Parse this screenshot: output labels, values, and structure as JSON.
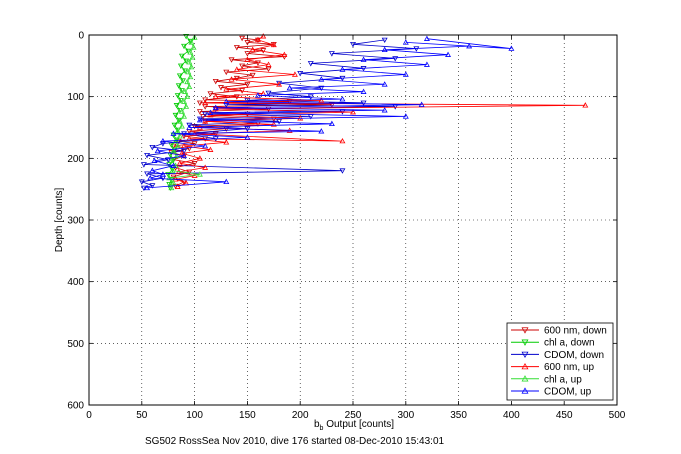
{
  "chart_data": {
    "type": "line",
    "title": "",
    "xlabel_main": "b",
    "xlabel_sub": "b",
    "xlabel_rest": " Output [counts]",
    "ylabel": "Depth [counts]",
    "caption": "SG502 RossSea Nov 2010, dive 176 started 08-Dec-2010 15:43:01",
    "xlim": [
      0,
      500
    ],
    "ylim": [
      0,
      600
    ],
    "y_reversed": true,
    "grid": true,
    "xticks": [
      "0",
      "50",
      "100",
      "150",
      "200",
      "250",
      "300",
      "350",
      "400",
      "450",
      "500"
    ],
    "yticks": [
      "0",
      "100",
      "200",
      "300",
      "400",
      "500",
      "600"
    ],
    "legend_position": "bottom-right",
    "series": [
      {
        "name": "600 nm, down",
        "color": "#cc0000",
        "marker": "triangle-down",
        "points": [
          [
            145,
            5
          ],
          [
            160,
            8
          ],
          [
            150,
            12
          ],
          [
            175,
            15
          ],
          [
            140,
            20
          ],
          [
            165,
            25
          ],
          [
            150,
            30
          ],
          [
            185,
            35
          ],
          [
            135,
            40
          ],
          [
            160,
            45
          ],
          [
            145,
            50
          ],
          [
            170,
            55
          ],
          [
            130,
            60
          ],
          [
            155,
            65
          ],
          [
            140,
            70
          ],
          [
            120,
            75
          ],
          [
            150,
            80
          ],
          [
            125,
            85
          ],
          [
            145,
            90
          ],
          [
            115,
            95
          ],
          [
            140,
            100
          ],
          [
            110,
            105
          ],
          [
            190,
            108
          ],
          [
            105,
            110
          ],
          [
            230,
            113
          ],
          [
            110,
            116
          ],
          [
            170,
            120
          ],
          [
            105,
            124
          ],
          [
            150,
            128
          ],
          [
            108,
            132
          ],
          [
            175,
            136
          ],
          [
            110,
            140
          ],
          [
            160,
            144
          ],
          [
            100,
            148
          ],
          [
            130,
            152
          ],
          [
            95,
            156
          ],
          [
            120,
            160
          ],
          [
            90,
            164
          ],
          [
            110,
            168
          ],
          [
            85,
            172
          ],
          [
            100,
            176
          ],
          [
            80,
            180
          ],
          [
            95,
            184
          ],
          [
            78,
            190
          ],
          [
            90,
            196
          ],
          [
            80,
            202
          ],
          [
            100,
            208
          ],
          [
            82,
            215
          ],
          [
            95,
            222
          ],
          [
            80,
            230
          ],
          [
            90,
            238
          ],
          [
            82,
            245
          ]
        ]
      },
      {
        "name": "chl a, down",
        "color": "#00cc00",
        "marker": "triangle-down",
        "points": [
          [
            92,
            2
          ],
          [
            96,
            10
          ],
          [
            90,
            18
          ],
          [
            94,
            26
          ],
          [
            88,
            34
          ],
          [
            92,
            42
          ],
          [
            87,
            50
          ],
          [
            91,
            58
          ],
          [
            86,
            66
          ],
          [
            89,
            74
          ],
          [
            85,
            82
          ],
          [
            88,
            90
          ],
          [
            84,
            98
          ],
          [
            87,
            106
          ],
          [
            83,
            114
          ],
          [
            86,
            122
          ],
          [
            82,
            130
          ],
          [
            85,
            138
          ],
          [
            81,
            146
          ],
          [
            84,
            154
          ],
          [
            80,
            162
          ],
          [
            83,
            170
          ],
          [
            78,
            178
          ],
          [
            81,
            186
          ],
          [
            77,
            194
          ],
          [
            80,
            202
          ],
          [
            76,
            210
          ],
          [
            79,
            218
          ],
          [
            75,
            226
          ],
          [
            78,
            234
          ],
          [
            76,
            242
          ],
          [
            77,
            248
          ]
        ]
      },
      {
        "name": "CDOM, down",
        "color": "#0000cc",
        "marker": "triangle-down",
        "points": [
          [
            280,
            8
          ],
          [
            250,
            15
          ],
          [
            310,
            22
          ],
          [
            230,
            30
          ],
          [
            290,
            38
          ],
          [
            210,
            46
          ],
          [
            260,
            54
          ],
          [
            200,
            62
          ],
          [
            240,
            70
          ],
          [
            180,
            78
          ],
          [
            220,
            86
          ],
          [
            170,
            94
          ],
          [
            210,
            100
          ],
          [
            150,
            106
          ],
          [
            260,
            110
          ],
          [
            130,
            113
          ],
          [
            290,
            116
          ],
          [
            120,
            120
          ],
          [
            240,
            124
          ],
          [
            110,
            128
          ],
          [
            210,
            132
          ],
          [
            105,
            136
          ],
          [
            180,
            140
          ],
          [
            95,
            146
          ],
          [
            150,
            152
          ],
          [
            90,
            160
          ],
          [
            120,
            168
          ],
          [
            70,
            176
          ],
          [
            60,
            182
          ],
          [
            90,
            188
          ],
          [
            55,
            195
          ],
          [
            75,
            202
          ],
          [
            52,
            210
          ],
          [
            240,
            220
          ],
          [
            55,
            225
          ],
          [
            70,
            232
          ],
          [
            50,
            238
          ],
          [
            60,
            244
          ],
          [
            52,
            248
          ]
        ]
      },
      {
        "name": "600 nm, up",
        "color": "#ff0000",
        "marker": "triangle-up",
        "points": [
          [
            84,
            246
          ],
          [
            92,
            240
          ],
          [
            82,
            234
          ],
          [
            100,
            228
          ],
          [
            85,
            222
          ],
          [
            110,
            215
          ],
          [
            86,
            208
          ],
          [
            105,
            200
          ],
          [
            88,
            192
          ],
          [
            115,
            186
          ],
          [
            90,
            180
          ],
          [
            130,
            174
          ],
          [
            95,
            168
          ],
          [
            240,
            172
          ],
          [
            100,
            160
          ],
          [
            190,
            155
          ],
          [
            105,
            150
          ],
          [
            175,
            145
          ],
          [
            110,
            140
          ],
          [
            200,
            135
          ],
          [
            115,
            130
          ],
          [
            250,
            125
          ],
          [
            120,
            120
          ],
          [
            470,
            114
          ],
          [
            110,
            110
          ],
          [
            220,
            106
          ],
          [
            120,
            100
          ],
          [
            165,
            95
          ],
          [
            130,
            88
          ],
          [
            180,
            80
          ],
          [
            135,
            72
          ],
          [
            195,
            64
          ],
          [
            140,
            56
          ],
          [
            170,
            48
          ],
          [
            150,
            40
          ],
          [
            185,
            32
          ],
          [
            155,
            24
          ],
          [
            175,
            16
          ],
          [
            160,
            8
          ],
          [
            165,
            2
          ]
        ]
      },
      {
        "name": "chl a, up",
        "color": "#33dd33",
        "marker": "triangle-up",
        "points": [
          [
            78,
            248
          ],
          [
            80,
            240
          ],
          [
            76,
            232
          ],
          [
            105,
            226
          ],
          [
            79,
            220
          ],
          [
            82,
            212
          ],
          [
            78,
            204
          ],
          [
            83,
            196
          ],
          [
            80,
            188
          ],
          [
            84,
            180
          ],
          [
            82,
            172
          ],
          [
            86,
            164
          ],
          [
            84,
            156
          ],
          [
            88,
            148
          ],
          [
            86,
            140
          ],
          [
            90,
            132
          ],
          [
            88,
            124
          ],
          [
            92,
            116
          ],
          [
            90,
            108
          ],
          [
            93,
            100
          ],
          [
            91,
            92
          ],
          [
            95,
            84
          ],
          [
            93,
            76
          ],
          [
            96,
            68
          ],
          [
            94,
            60
          ],
          [
            97,
            52
          ],
          [
            95,
            44
          ],
          [
            98,
            36
          ],
          [
            96,
            28
          ],
          [
            99,
            20
          ],
          [
            97,
            12
          ],
          [
            100,
            4
          ]
        ]
      },
      {
        "name": "CDOM, up",
        "color": "#0000ff",
        "marker": "triangle-up",
        "points": [
          [
            55,
            248
          ],
          [
            130,
            238
          ],
          [
            58,
            232
          ],
          [
            70,
            226
          ],
          [
            60,
            220
          ],
          [
            80,
            212
          ],
          [
            62,
            204
          ],
          [
            90,
            196
          ],
          [
            65,
            188
          ],
          [
            110,
            180
          ],
          [
            70,
            172
          ],
          [
            150,
            166
          ],
          [
            80,
            160
          ],
          [
            220,
            156
          ],
          [
            95,
            150
          ],
          [
            230,
            144
          ],
          [
            105,
            138
          ],
          [
            300,
            132
          ],
          [
            115,
            126
          ],
          [
            280,
            122
          ],
          [
            120,
            118
          ],
          [
            315,
            113
          ],
          [
            130,
            108
          ],
          [
            240,
            104
          ],
          [
            160,
            98
          ],
          [
            260,
            92
          ],
          [
            190,
            86
          ],
          [
            280,
            80
          ],
          [
            220,
            72
          ],
          [
            300,
            64
          ],
          [
            240,
            56
          ],
          [
            320,
            48
          ],
          [
            260,
            40
          ],
          [
            340,
            32
          ],
          [
            280,
            24
          ],
          [
            360,
            18
          ],
          [
            300,
            12
          ],
          [
            400,
            22
          ],
          [
            320,
            6
          ]
        ]
      }
    ]
  }
}
